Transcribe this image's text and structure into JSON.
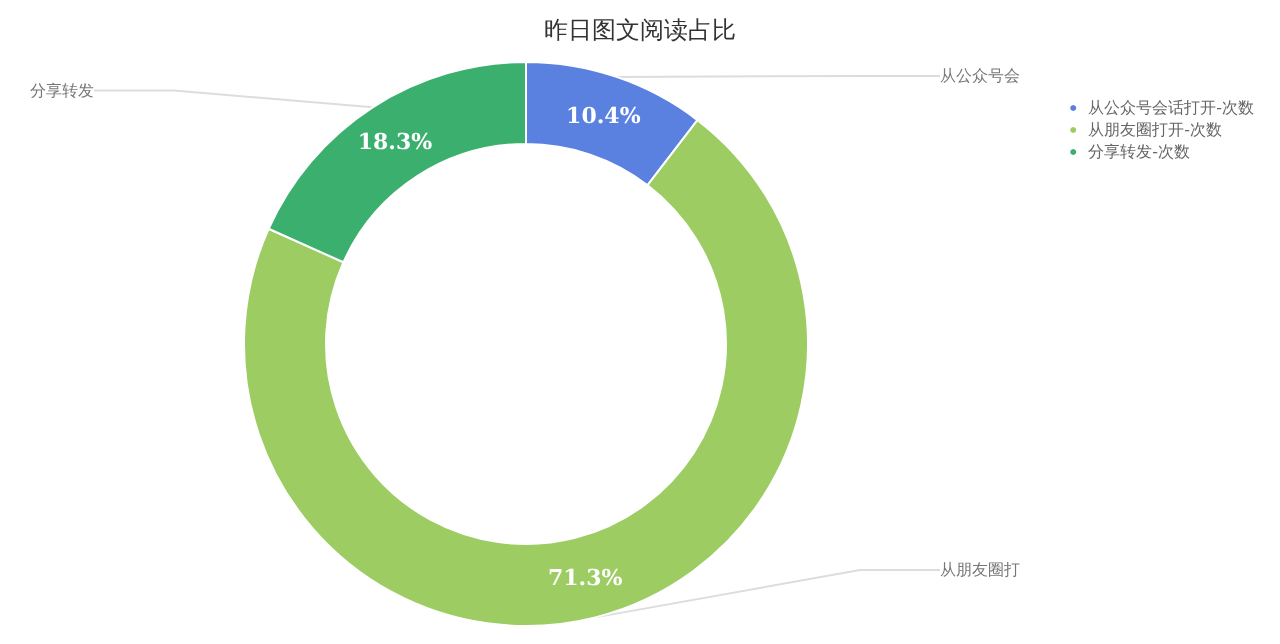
{
  "chart_data": {
    "type": "donut",
    "title": "昨日图文阅读占比",
    "categories": [
      "从公众号会话打开-次数",
      "从朋友圈打开-次数",
      "分享转发-次数"
    ],
    "values": [
      10.4,
      71.3,
      18.3
    ],
    "colors": [
      "#5a80e0",
      "#9ccc62",
      "#3bb06e"
    ],
    "value_labels": [
      "10.4%",
      "71.3%",
      "18.3%"
    ],
    "annotations": [
      "从公众号会",
      "从朋友圈打",
      "分享转发"
    ],
    "legend": "top right"
  }
}
